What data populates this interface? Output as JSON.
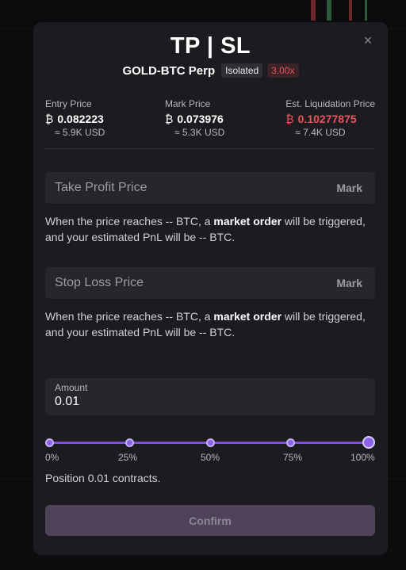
{
  "modal": {
    "title": "TP | SL",
    "close_glyph": "×",
    "market": "GOLD-BTC Perp",
    "margin_mode": "Isolated",
    "leverage": "3.00x"
  },
  "stats": {
    "coin_symbol": "₿",
    "entry": {
      "label": "Entry Price",
      "value": "0.082223",
      "usd": "≈ 5.9K USD"
    },
    "mark": {
      "label": "Mark Price",
      "value": "0.073976",
      "usd": "≈ 5.3K USD"
    },
    "liquidation": {
      "label": "Est. Liquidation Price",
      "value": "0.10277875",
      "usd": "≈ 7.4K USD",
      "color": "#e8535c"
    }
  },
  "take_profit": {
    "placeholder": "Take Profit Price",
    "price_type": "Mark",
    "hint_prefix": "When the price reaches -- BTC, a ",
    "hint_bold": "market order",
    "hint_suffix": " will be triggered, and your estimated PnL will be -- BTC."
  },
  "stop_loss": {
    "placeholder": "Stop Loss Price",
    "price_type": "Mark",
    "hint_prefix": "When the price reaches -- BTC, a ",
    "hint_bold": "market order",
    "hint_suffix": " will be triggered, and your estimated PnL will be -- BTC."
  },
  "amount": {
    "label": "Amount",
    "value": "0.01"
  },
  "slider": {
    "value_fraction": 1.0,
    "ticks": [
      "0%",
      "25%",
      "50%",
      "75%",
      "100%"
    ]
  },
  "position_text": "Position 0.01 contracts.",
  "confirm_label": "Confirm",
  "colors": {
    "accent": "#8b63e8",
    "danger": "#e8535c",
    "confirm_bg": "#4e4359"
  }
}
